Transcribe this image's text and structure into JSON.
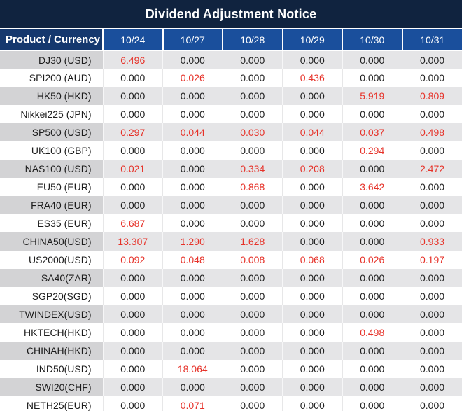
{
  "title": "Dividend Adjustment Notice",
  "colors": {
    "title-bg": "#10233f",
    "product-header-bg": "#15386e",
    "date-header-bg": "#1a4f9c",
    "red": "#e63229",
    "shade-product": "#d3d3d5",
    "shade-value": "#e5e5e7"
  },
  "table": {
    "header_product": "Product / Currency",
    "date_columns": [
      "10/24",
      "10/27",
      "10/28",
      "10/29",
      "10/30",
      "10/31"
    ],
    "rows": [
      {
        "product": "DJ30 (USD)",
        "values": [
          "6.496",
          "0.000",
          "0.000",
          "0.000",
          "0.000",
          "0.000"
        ]
      },
      {
        "product": "SPI200 (AUD)",
        "values": [
          "0.000",
          "0.026",
          "0.000",
          "0.436",
          "0.000",
          "0.000"
        ]
      },
      {
        "product": "HK50 (HKD)",
        "values": [
          "0.000",
          "0.000",
          "0.000",
          "0.000",
          "5.919",
          "0.809"
        ]
      },
      {
        "product": "Nikkei225 (JPN)",
        "values": [
          "0.000",
          "0.000",
          "0.000",
          "0.000",
          "0.000",
          "0.000"
        ]
      },
      {
        "product": "SP500 (USD)",
        "values": [
          "0.297",
          "0.044",
          "0.030",
          "0.044",
          "0.037",
          "0.498"
        ]
      },
      {
        "product": "UK100 (GBP)",
        "values": [
          "0.000",
          "0.000",
          "0.000",
          "0.000",
          "0.294",
          "0.000"
        ]
      },
      {
        "product": "NAS100 (USD)",
        "values": [
          "0.021",
          "0.000",
          "0.334",
          "0.208",
          "0.000",
          "2.472"
        ]
      },
      {
        "product": "EU50 (EUR)",
        "values": [
          "0.000",
          "0.000",
          "0.868",
          "0.000",
          "3.642",
          "0.000"
        ]
      },
      {
        "product": "FRA40 (EUR)",
        "values": [
          "0.000",
          "0.000",
          "0.000",
          "0.000",
          "0.000",
          "0.000"
        ]
      },
      {
        "product": "ES35 (EUR)",
        "values": [
          "6.687",
          "0.000",
          "0.000",
          "0.000",
          "0.000",
          "0.000"
        ]
      },
      {
        "product": "CHINA50(USD)",
        "values": [
          "13.307",
          "1.290",
          "1.628",
          "0.000",
          "0.000",
          "0.933"
        ]
      },
      {
        "product": "US2000(USD)",
        "values": [
          "0.092",
          "0.048",
          "0.008",
          "0.068",
          "0.026",
          "0.197"
        ]
      },
      {
        "product": "SA40(ZAR)",
        "values": [
          "0.000",
          "0.000",
          "0.000",
          "0.000",
          "0.000",
          "0.000"
        ]
      },
      {
        "product": "SGP20(SGD)",
        "values": [
          "0.000",
          "0.000",
          "0.000",
          "0.000",
          "0.000",
          "0.000"
        ]
      },
      {
        "product": "TWINDEX(USD)",
        "values": [
          "0.000",
          "0.000",
          "0.000",
          "0.000",
          "0.000",
          "0.000"
        ]
      },
      {
        "product": "HKTECH(HKD)",
        "values": [
          "0.000",
          "0.000",
          "0.000",
          "0.000",
          "0.498",
          "0.000"
        ]
      },
      {
        "product": "CHINAH(HKD)",
        "values": [
          "0.000",
          "0.000",
          "0.000",
          "0.000",
          "0.000",
          "0.000"
        ]
      },
      {
        "product": "IND50(USD)",
        "values": [
          "0.000",
          "18.064",
          "0.000",
          "0.000",
          "0.000",
          "0.000"
        ]
      },
      {
        "product": "SWI20(CHF)",
        "values": [
          "0.000",
          "0.000",
          "0.000",
          "0.000",
          "0.000",
          "0.000"
        ]
      },
      {
        "product": "NETH25(EUR)",
        "values": [
          "0.000",
          "0.071",
          "0.000",
          "0.000",
          "0.000",
          "0.000"
        ]
      }
    ]
  }
}
